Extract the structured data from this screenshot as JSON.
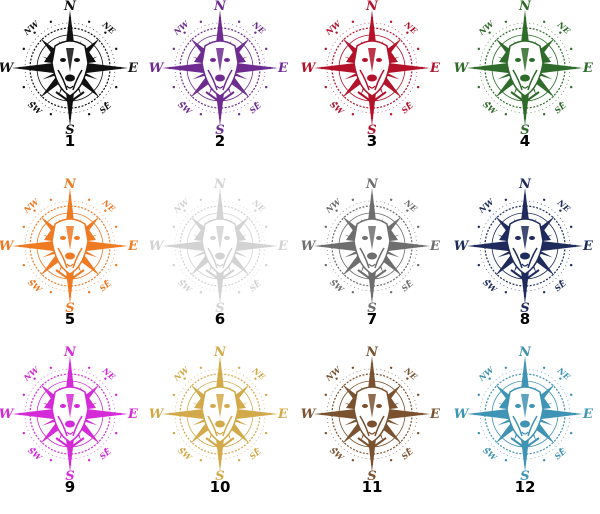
{
  "compass_labels": {
    "n": "N",
    "e": "E",
    "s": "S",
    "w": "W",
    "nw": "NW",
    "ne": "NE",
    "sw": "SW",
    "se": "SE"
  },
  "variants": [
    {
      "number": "1",
      "color": "#111111"
    },
    {
      "number": "2",
      "color": "#6e2c91"
    },
    {
      "number": "3",
      "color": "#b3122a"
    },
    {
      "number": "4",
      "color": "#2f6b2a"
    },
    {
      "number": "5",
      "color": "#ef7a24"
    },
    {
      "number": "6",
      "color": "#d3d3d3"
    },
    {
      "number": "7",
      "color": "#6e6e6e"
    },
    {
      "number": "8",
      "color": "#1e2b5c"
    },
    {
      "number": "9",
      "color": "#d42ad8"
    },
    {
      "number": "10",
      "color": "#d3aa4a"
    },
    {
      "number": "11",
      "color": "#7b5230"
    },
    {
      "number": "12",
      "color": "#3f93b4"
    }
  ]
}
